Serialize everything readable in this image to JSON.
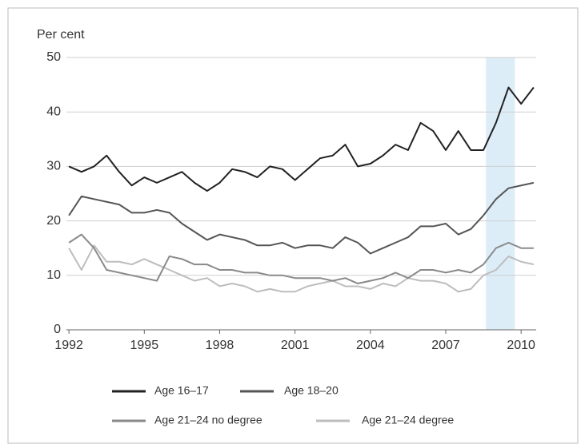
{
  "chart_data": {
    "type": "line",
    "y_label": "Per cent",
    "x": [
      1992,
      1992.5,
      1993,
      1993.5,
      1994,
      1994.5,
      1995,
      1995.5,
      1996,
      1996.5,
      1997,
      1997.5,
      1998,
      1998.5,
      1999,
      1999.5,
      2000,
      2000.5,
      2001,
      2001.5,
      2002,
      2002.5,
      2003,
      2003.5,
      2004,
      2004.5,
      2005,
      2005.5,
      2006,
      2006.5,
      2007,
      2007.5,
      2008,
      2008.5,
      2009,
      2009.5,
      2010,
      2010.5
    ],
    "series": [
      {
        "name": "Age 16–17",
        "color": "#222222",
        "values": [
          30,
          29,
          30,
          32,
          29,
          26.5,
          28,
          27,
          28,
          29,
          27,
          25.5,
          27,
          29.5,
          29,
          28,
          30,
          29.5,
          27.5,
          29.5,
          31.5,
          32,
          34,
          30,
          30.5,
          32,
          34,
          33,
          38,
          36.5,
          33,
          36.5,
          33,
          33,
          38,
          44.5,
          41.5,
          44.5
        ]
      },
      {
        "name": "Age 18–20",
        "color": "#555555",
        "values": [
          21,
          24.5,
          24,
          23.5,
          23,
          21.5,
          21.5,
          22,
          21.5,
          19.5,
          18,
          16.5,
          17.5,
          17,
          16.5,
          15.5,
          15.5,
          16,
          15,
          15.5,
          15.5,
          15,
          17,
          16,
          14,
          15,
          16,
          17,
          19,
          19,
          19.5,
          17.5,
          18.5,
          21,
          24,
          26,
          26.5,
          27
        ]
      },
      {
        "name": "Age 21–24 no degree",
        "color": "#8a8a8a",
        "values": [
          16,
          17.5,
          15,
          11,
          10.5,
          10,
          9.5,
          9,
          13.5,
          13,
          12,
          12,
          11,
          11,
          10.5,
          10.5,
          10,
          10,
          9.5,
          9.5,
          9.5,
          9,
          9.5,
          8.5,
          9,
          9.5,
          10.5,
          9.5,
          11,
          11,
          10.5,
          11,
          10.5,
          12,
          15,
          16,
          15,
          15
        ]
      },
      {
        "name": "Age 21–24 degree",
        "color": "#bdbdbd",
        "values": [
          15,
          11,
          15.5,
          12.5,
          12.5,
          12,
          13,
          12,
          11,
          10,
          9,
          9.5,
          8,
          8.5,
          8,
          7,
          7.5,
          7,
          7,
          8,
          8.5,
          9,
          8,
          8,
          7.5,
          8.5,
          8,
          9.5,
          9,
          9,
          8.5,
          7,
          7.5,
          10,
          11,
          13.5,
          12.5,
          12
        ]
      }
    ],
    "xlim": [
      1991.9,
      2010.6
    ],
    "xticks": [
      1992,
      1995,
      1998,
      2001,
      2004,
      2007,
      2010
    ],
    "ylim": [
      0,
      50
    ],
    "yticks": [
      0,
      10,
      20,
      30,
      40,
      50
    ],
    "grid": true,
    "shaded_x_range": [
      2008.6,
      2009.75
    ],
    "shade_color": "#dcedf8"
  }
}
